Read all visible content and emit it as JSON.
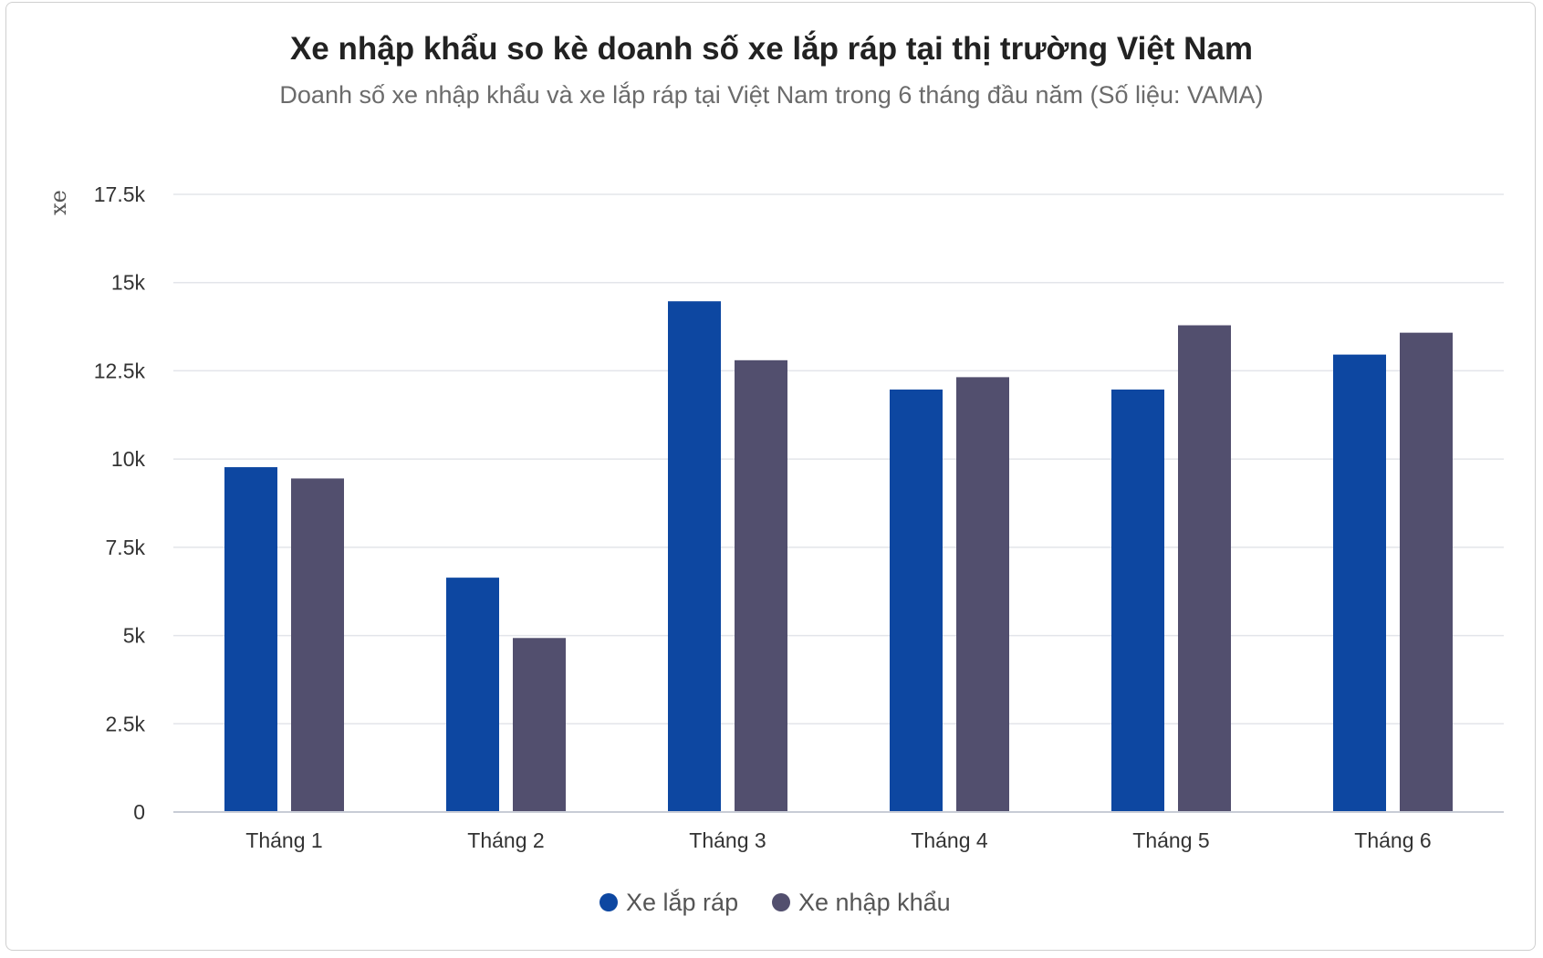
{
  "chart_data": {
    "type": "bar",
    "title": "Xe nhập khẩu so kè doanh số xe lắp ráp tại thị trường Việt Nam",
    "subtitle": "Doanh số xe nhập khẩu và xe lắp ráp tại Việt Nam trong 6 tháng đầu năm (Số liệu: VAMA)",
    "ylabel": "xe",
    "xlabel": "",
    "ylim": [
      0,
      17500
    ],
    "yticks": [
      0,
      2500,
      5000,
      7500,
      10000,
      12500,
      15000,
      17500
    ],
    "ytick_labels": [
      "0",
      "2.5k",
      "5k",
      "7.5k",
      "10k",
      "12.5k",
      "15k",
      "17.5k"
    ],
    "categories": [
      "Tháng 1",
      "Tháng 2",
      "Tháng 3",
      "Tháng 4",
      "Tháng 5",
      "Tháng 6"
    ],
    "series": [
      {
        "name": "Xe lắp ráp",
        "color": "#0d47a1",
        "values": [
          9770,
          6640,
          14470,
          11970,
          11970,
          12960
        ]
      },
      {
        "name": "Xe nhập khẩu",
        "color": "#524f6e",
        "values": [
          9450,
          4930,
          12800,
          12320,
          13790,
          13580
        ]
      }
    ],
    "grid": true,
    "legend_position": "bottom-center"
  }
}
